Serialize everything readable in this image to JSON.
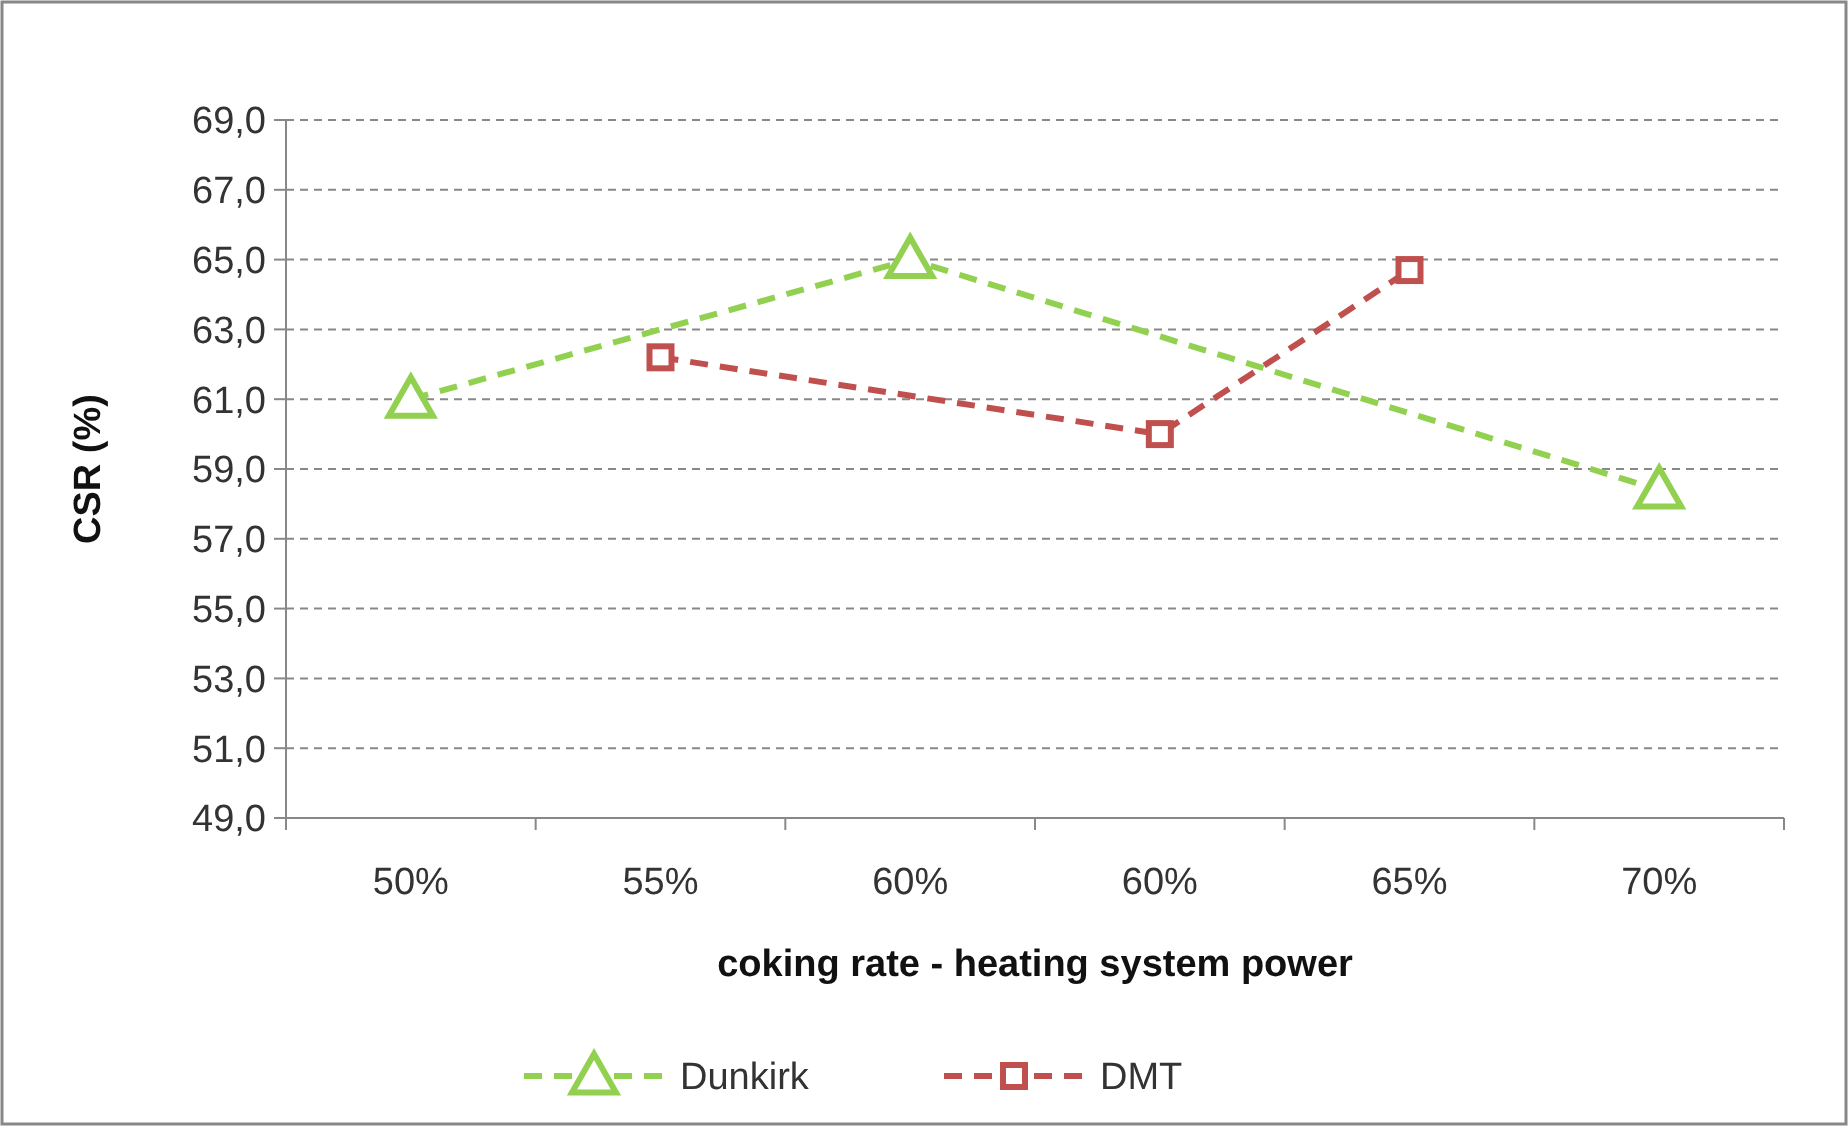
{
  "chart_data": {
    "type": "line",
    "xlabel": "coking rate - heating system power",
    "ylabel": "CSR (%)",
    "categories": [
      "50%",
      "55%",
      "60%",
      "60%",
      "65%",
      "70%"
    ],
    "series": [
      {
        "name": "Dunkirk",
        "color": "#92d050",
        "marker": "triangle",
        "values": [
          61.0,
          null,
          65.0,
          null,
          null,
          58.4
        ]
      },
      {
        "name": "DMT",
        "color": "#c0504d",
        "marker": "square",
        "values": [
          null,
          62.2,
          null,
          60.0,
          64.7,
          null
        ]
      }
    ],
    "ylim": [
      49,
      69
    ],
    "yticks": [
      {
        "value": 49,
        "label": "49,0"
      },
      {
        "value": 51,
        "label": "51,0"
      },
      {
        "value": 53,
        "label": "53,0"
      },
      {
        "value": 55,
        "label": "55,0"
      },
      {
        "value": 57,
        "label": "57,0"
      },
      {
        "value": 59,
        "label": "59,0"
      },
      {
        "value": 61,
        "label": "61,0"
      },
      {
        "value": 63,
        "label": "63,0"
      },
      {
        "value": 65,
        "label": "65,0"
      },
      {
        "value": 67,
        "label": "67,0"
      },
      {
        "value": 69,
        "label": "69,0"
      }
    ],
    "grid": "y",
    "legend": "bottom",
    "line_style": "dashed"
  }
}
